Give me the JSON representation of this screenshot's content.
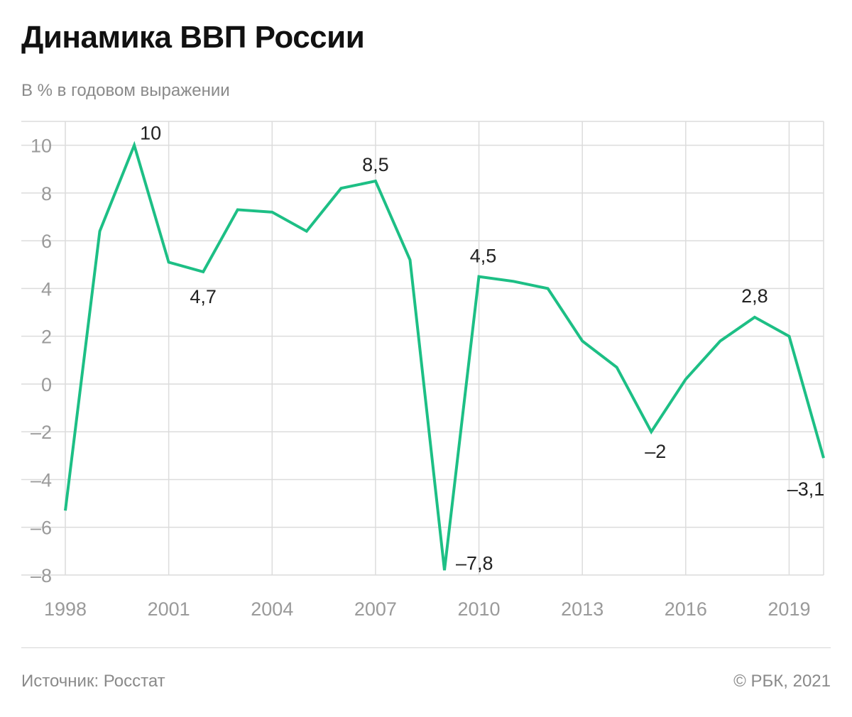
{
  "header": {
    "title": "Динамика ВВП России",
    "subtitle": "В % в годовом выражении"
  },
  "footer": {
    "source": "Источник: Росстат",
    "copyright": "© РБК, 2021"
  },
  "colors": {
    "line": "#1dbf85",
    "grid": "#dcdcdc",
    "tick_text": "#9a9a9a",
    "label_text": "#222222"
  },
  "chart_data": {
    "type": "line",
    "title": "Динамика ВВП России",
    "subtitle": "В % в годовом выражении",
    "x": [
      1998,
      1999,
      2000,
      2001,
      2002,
      2003,
      2004,
      2005,
      2006,
      2007,
      2008,
      2009,
      2010,
      2011,
      2012,
      2013,
      2014,
      2015,
      2016,
      2017,
      2018,
      2019,
      2020
    ],
    "series": [
      {
        "values": [
          -5.3,
          6.4,
          10,
          5.1,
          4.7,
          7.3,
          7.2,
          6.4,
          8.2,
          8.5,
          5.2,
          -7.8,
          4.5,
          4.3,
          4.0,
          1.8,
          0.7,
          -2.0,
          0.2,
          1.8,
          2.8,
          2.0,
          -3.1
        ]
      }
    ],
    "xlim": [
      1998,
      2020
    ],
    "ylim": [
      -8,
      11
    ],
    "x_ticks": [
      "1998",
      "2001",
      "2004",
      "2007",
      "2010",
      "2013",
      "2016",
      "2019"
    ],
    "y_ticks": [
      "10",
      "8",
      "6",
      "4",
      "2",
      "0",
      "–2",
      "–4",
      "–6",
      "–8"
    ],
    "grid": true,
    "annotations": [
      {
        "x": 2000,
        "y": 10,
        "text": "10"
      },
      {
        "x": 2002,
        "y": 4.7,
        "text": "4,7"
      },
      {
        "x": 2007,
        "y": 8.5,
        "text": "8,5"
      },
      {
        "x": 2009,
        "y": -7.8,
        "text": "–7,8"
      },
      {
        "x": 2010,
        "y": 4.5,
        "text": "4,5"
      },
      {
        "x": 2015,
        "y": -2,
        "text": "–2"
      },
      {
        "x": 2018,
        "y": 2.8,
        "text": "2,8"
      },
      {
        "x": 2020,
        "y": -3.1,
        "text": "–3,1"
      }
    ]
  }
}
